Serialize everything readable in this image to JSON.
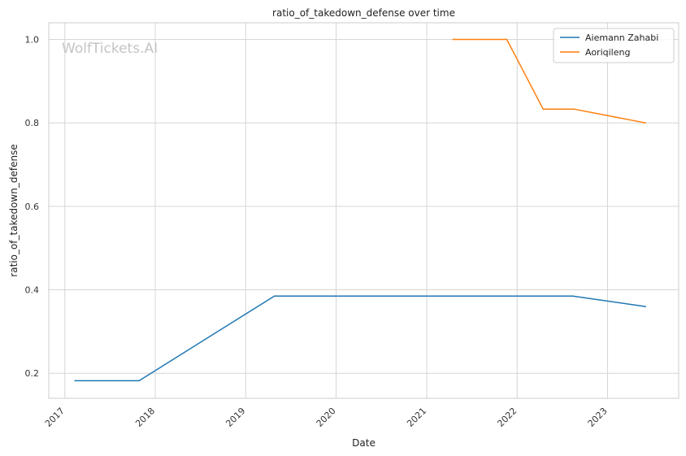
{
  "chart_data": {
    "type": "line",
    "title": "ratio_of_takedown_defense over time",
    "xlabel": "Date",
    "ylabel": "ratio_of_takedown_defense",
    "watermark": "WolfTickets.AI",
    "xlim": [
      "2016-10-28",
      "2023-10-15"
    ],
    "ylim": [
      0.14,
      1.04
    ],
    "x_ticks": [
      "2017",
      "2018",
      "2019",
      "2020",
      "2021",
      "2022",
      "2023"
    ],
    "y_ticks": [
      "0.2",
      "0.4",
      "0.6",
      "0.8",
      "1.0"
    ],
    "grid": true,
    "legend_position": "top-right",
    "series": [
      {
        "name": "Aiemann Zahabi",
        "color": "#1f77b4",
        "x": [
          "2017-02-11",
          "2017-10-28",
          "2019-04-27",
          "2022-08-13",
          "2023-06-03"
        ],
        "y": [
          0.182,
          0.182,
          0.385,
          0.385,
          0.36
        ]
      },
      {
        "name": "Aoriqileng",
        "color": "#ff7f0e",
        "x": [
          "2021-04-17",
          "2021-11-20",
          "2022-04-16",
          "2022-08-20",
          "2023-06-03"
        ],
        "y": [
          1.0,
          1.0,
          0.833,
          0.833,
          0.8
        ]
      }
    ]
  }
}
